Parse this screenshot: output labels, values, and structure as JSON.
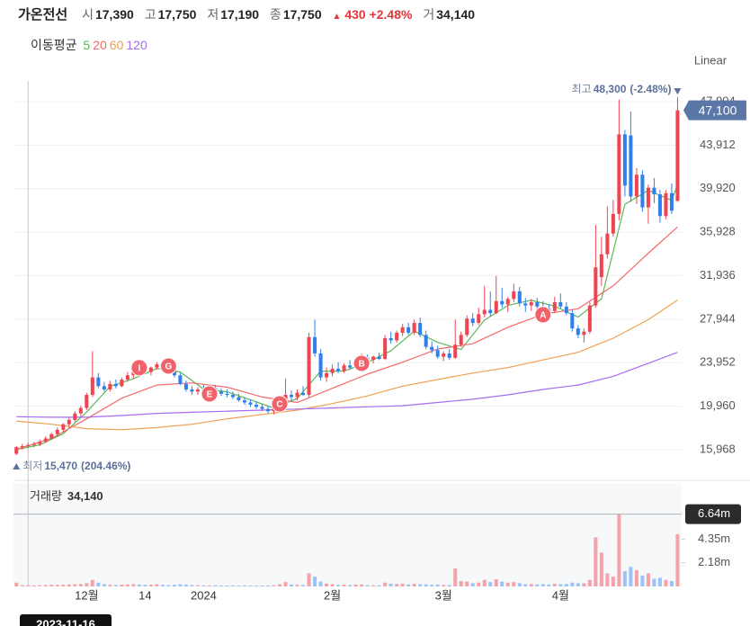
{
  "header": {
    "name": "가온전선",
    "fields": [
      {
        "label": "시",
        "value": "17,390"
      },
      {
        "label": "고",
        "value": "17,750"
      },
      {
        "label": "저",
        "value": "17,190"
      },
      {
        "label": "종",
        "value": "17,750"
      }
    ],
    "change": "430",
    "change_pct": "+2.48%",
    "volume_label": "거",
    "volume": "34,140"
  },
  "chart_data": [
    {
      "type": "candlestick",
      "scale_label": "Linear",
      "ma_label": "이동평균",
      "up_color": "#f04452",
      "down_color": "#2f80ed",
      "open": [
        15600,
        16200,
        16300,
        16400,
        16500,
        16700,
        17000,
        17400,
        17800,
        18300,
        18700,
        19300,
        19800,
        21000,
        22600,
        21800,
        21500,
        22000,
        21800,
        22400,
        22800,
        23400,
        23300,
        23100,
        23500,
        23800,
        23600,
        23300,
        22800,
        22000,
        21500,
        21300,
        21500,
        21400,
        21600,
        21300,
        21100,
        21000,
        20800,
        20500,
        20300,
        20100,
        19900,
        19700,
        19500,
        19800,
        20500,
        21000,
        20800,
        21200,
        21000,
        26300,
        24800,
        22600,
        23000,
        23400,
        23200,
        23700,
        23500,
        24100,
        24400,
        24200,
        24500,
        24300,
        26200,
        26000,
        26700,
        27200,
        26700,
        27600,
        26500,
        25400,
        25100,
        24500,
        24800,
        24400,
        25600,
        26500,
        28000,
        27600,
        28400,
        28800,
        28500,
        29600,
        29300,
        29800,
        30500,
        29400,
        29200,
        29500,
        29100,
        28900,
        28700,
        29500,
        29100,
        28500,
        27100,
        26500,
        26800,
        29200,
        31800,
        33900,
        35800,
        37600,
        44900,
        44800,
        39200,
        41200,
        38200,
        40000,
        39400,
        37400,
        39500,
        38800
      ],
      "high": [
        16300,
        16500,
        16600,
        16700,
        16900,
        17200,
        17500,
        18000,
        18400,
        18900,
        19500,
        20000,
        21200,
        25000,
        23000,
        22200,
        22300,
        22400,
        22600,
        23100,
        23600,
        23900,
        23800,
        23600,
        24000,
        24100,
        23900,
        23600,
        23000,
        22300,
        21800,
        21700,
        21900,
        21800,
        21900,
        21600,
        21500,
        21300,
        21100,
        20800,
        20600,
        20400,
        20200,
        20000,
        19900,
        20800,
        22500,
        21400,
        21500,
        21800,
        26700,
        27900,
        25200,
        23500,
        23800,
        24000,
        23900,
        24200,
        24300,
        24800,
        24700,
        24600,
        24900,
        26500,
        26800,
        26900,
        27500,
        27600,
        27900,
        28100,
        26900,
        25900,
        25500,
        25000,
        25200,
        27900,
        26800,
        28300,
        28500,
        29000,
        31000,
        30500,
        31900,
        30800,
        30000,
        31200,
        30900,
        29900,
        29800,
        29900,
        29600,
        29300,
        30000,
        30300,
        29500,
        28800,
        27400,
        27100,
        29500,
        36600,
        35500,
        38300,
        38900,
        48100,
        45300,
        47000,
        41800,
        41600,
        40300,
        40900,
        39800,
        39800,
        40400,
        48300
      ],
      "low": [
        15470,
        16000,
        16100,
        16200,
        16300,
        16600,
        16900,
        17200,
        17600,
        18000,
        18500,
        19000,
        19600,
        20800,
        21600,
        21300,
        21300,
        21600,
        21700,
        22200,
        22500,
        23000,
        22900,
        22800,
        23300,
        23400,
        23200,
        22600,
        21900,
        21300,
        21000,
        21000,
        21200,
        21100,
        21200,
        20900,
        20800,
        20600,
        20400,
        20100,
        19900,
        19700,
        19500,
        19300,
        19200,
        19600,
        20300,
        20400,
        20500,
        20900,
        20800,
        24500,
        22300,
        22200,
        22700,
        23000,
        23000,
        23300,
        23400,
        23900,
        24000,
        23900,
        24200,
        24200,
        25700,
        25800,
        26400,
        26500,
        26500,
        26300,
        25200,
        24800,
        24300,
        24100,
        24200,
        24300,
        25400,
        26300,
        27300,
        27400,
        28100,
        28200,
        28400,
        29000,
        28600,
        29500,
        29100,
        28600,
        28700,
        28800,
        28500,
        28200,
        28500,
        28900,
        28300,
        26800,
        26200,
        25800,
        26600,
        29000,
        31000,
        33500,
        35500,
        37000,
        39200,
        38700,
        38500,
        37800,
        36700,
        38600,
        36800,
        37100,
        37600,
        38700
      ],
      "close": [
        16200,
        16300,
        16400,
        16500,
        16700,
        17000,
        17400,
        17800,
        18300,
        18700,
        19300,
        19800,
        21000,
        22600,
        21800,
        21500,
        22000,
        21800,
        22400,
        22800,
        23400,
        23300,
        23100,
        23500,
        23800,
        23600,
        23300,
        22800,
        22000,
        21500,
        21300,
        21500,
        21400,
        21600,
        21300,
        21100,
        21000,
        20800,
        20500,
        20300,
        20100,
        19900,
        19700,
        19500,
        19800,
        20500,
        21000,
        20800,
        21200,
        21000,
        26300,
        24800,
        22600,
        23000,
        23400,
        23200,
        23700,
        23500,
        24100,
        24400,
        24200,
        24500,
        24300,
        26200,
        26000,
        26700,
        27200,
        26700,
        27600,
        26500,
        25400,
        25100,
        24500,
        24800,
        24400,
        25600,
        26500,
        28000,
        27600,
        28400,
        28800,
        28500,
        29600,
        29300,
        29800,
        30500,
        29400,
        29200,
        29500,
        29100,
        28900,
        28700,
        29500,
        29100,
        28500,
        27100,
        26500,
        26800,
        29200,
        32700,
        33900,
        35800,
        37600,
        44900,
        40200,
        39200,
        41200,
        38200,
        40000,
        39400,
        37400,
        39500,
        37900,
        47100
      ],
      "series": [
        {
          "name": "5",
          "color": "#5cb85c",
          "x": [
            0,
            4,
            8,
            12,
            16,
            20,
            24,
            28,
            32,
            36,
            40,
            44,
            48,
            52,
            56,
            60,
            64,
            68,
            72,
            76,
            80,
            84,
            88,
            92,
            96,
            100,
            104,
            108,
            112,
            113
          ],
          "values": [
            16000,
            16420,
            17440,
            19420,
            21780,
            22480,
            23420,
            23100,
            21540,
            21280,
            20540,
            19800,
            20660,
            23180,
            23180,
            23980,
            25040,
            26840,
            25820,
            25160,
            27860,
            29200,
            29680,
            29140,
            28140,
            29820,
            38480,
            39760,
            38840,
            40260
          ]
        },
        {
          "name": "20",
          "color": "#f26a6a",
          "x": [
            0,
            6,
            12,
            18,
            24,
            30,
            36,
            42,
            48,
            54,
            60,
            66,
            72,
            78,
            84,
            90,
            96,
            102,
            108,
            113
          ],
          "values": [
            16000,
            17000,
            18800,
            20700,
            21900,
            22100,
            21700,
            20800,
            20300,
            21600,
            22900,
            24000,
            25200,
            25700,
            27200,
            28400,
            28900,
            31000,
            34000,
            36400
          ]
        },
        {
          "name": "60",
          "color": "#f0a050",
          "x": [
            0,
            6,
            12,
            18,
            24,
            30,
            36,
            42,
            48,
            54,
            60,
            66,
            72,
            78,
            84,
            90,
            96,
            102,
            108,
            113
          ],
          "values": [
            18600,
            18300,
            17900,
            17800,
            18000,
            18300,
            18800,
            19200,
            19600,
            20200,
            20900,
            21800,
            22400,
            23000,
            23500,
            24200,
            24900,
            26200,
            27900,
            29700
          ]
        },
        {
          "name": "120",
          "color": "#a86cf0",
          "x": [
            0,
            6,
            12,
            18,
            24,
            30,
            36,
            42,
            48,
            54,
            60,
            66,
            72,
            78,
            84,
            90,
            96,
            102,
            108,
            113
          ],
          "values": [
            19000,
            18950,
            18950,
            19100,
            19300,
            19400,
            19500,
            19600,
            19700,
            19800,
            19900,
            20000,
            20300,
            20600,
            21000,
            21500,
            21900,
            22700,
            23900,
            24900
          ]
        }
      ],
      "xlim": [
        -0.5,
        113.7
      ],
      "xticks": [
        {
          "value": 12,
          "label": "12월"
        },
        {
          "value": 22,
          "label": "14"
        },
        {
          "value": 32,
          "label": "2024"
        },
        {
          "value": 54,
          "label": "2월"
        },
        {
          "value": 73,
          "label": "3월"
        },
        {
          "value": 93,
          "label": "4월"
        }
      ],
      "ylim": [
        13493,
        49797
      ],
      "yticks": [
        {
          "value": 15968,
          "label": "15,968"
        },
        {
          "value": 19960,
          "label": "19,960"
        },
        {
          "value": 23952,
          "label": "23,952"
        },
        {
          "value": 27944,
          "label": "27,944"
        },
        {
          "value": 31936,
          "label": "31,936"
        },
        {
          "value": 35928,
          "label": "35,928"
        },
        {
          "value": 39920,
          "label": "39,920"
        },
        {
          "value": 43912,
          "label": "43,912"
        },
        {
          "value": 47904,
          "label": "47,904"
        }
      ],
      "grid": true,
      "last_price": {
        "label": "47,100",
        "color": "#5a77a8"
      },
      "max_annotation": {
        "label": "최고",
        "text": "48,300",
        "pct": "(-2.48%)",
        "index": 113
      },
      "min_annotation": {
        "label": "최저",
        "text": "15,470",
        "pct": "(204.46%)",
        "index": 0
      },
      "markers": [
        {
          "label": "I",
          "x": 21,
          "y": 23500
        },
        {
          "label": "G",
          "x": 26,
          "y": 23640
        },
        {
          "label": "E",
          "x": 33,
          "y": 21080
        },
        {
          "label": "C",
          "x": 45,
          "y": 20180
        },
        {
          "label": "B",
          "x": 59,
          "y": 23890
        },
        {
          "label": "A",
          "x": 90,
          "y": 28350
        }
      ],
      "marker_color": "#f0616a",
      "crosshair": {
        "x": 2,
        "label": "2023-11-16"
      }
    },
    {
      "type": "bar",
      "title": "거래량",
      "title_value": "34,140",
      "up_color": "#f4a3a8",
      "down_color": "#9cc3f7",
      "values": [
        350000,
        120000,
        100000,
        90000,
        110000,
        130000,
        150000,
        140000,
        160000,
        180000,
        200000,
        220000,
        300000,
        600000,
        350000,
        200000,
        150000,
        130000,
        160000,
        180000,
        210000,
        170000,
        150000,
        160000,
        200000,
        140000,
        120000,
        150000,
        200000,
        170000,
        130000,
        110000,
        100000,
        90000,
        100000,
        90000,
        80000,
        90000,
        80000,
        90000,
        80000,
        70000,
        80000,
        90000,
        110000,
        200000,
        400000,
        180000,
        150000,
        130000,
        1200000,
        900000,
        450000,
        250000,
        200000,
        150000,
        160000,
        130000,
        170000,
        180000,
        120000,
        110000,
        100000,
        350000,
        250000,
        220000,
        260000,
        180000,
        240000,
        200000,
        190000,
        150000,
        170000,
        140000,
        130000,
        1650000,
        500000,
        450000,
        300000,
        350000,
        600000,
        400000,
        650000,
        450000,
        350000,
        400000,
        300000,
        200000,
        220000,
        180000,
        200000,
        170000,
        250000,
        200000,
        220000,
        350000,
        300000,
        280000,
        600000,
        4500000,
        3100000,
        1200000,
        900000,
        6640000,
        1400000,
        1800000,
        1500000,
        1000000,
        1200000,
        700000,
        800000,
        600000,
        500000,
        4800000
      ],
      "ylim": [
        0,
        9500000
      ],
      "yticks": [
        {
          "value": 2180000,
          "label": "2.18m"
        },
        {
          "value": 4350000,
          "label": "4.35m"
        },
        {
          "value": 6640000,
          "label": "6.64m"
        }
      ]
    }
  ]
}
